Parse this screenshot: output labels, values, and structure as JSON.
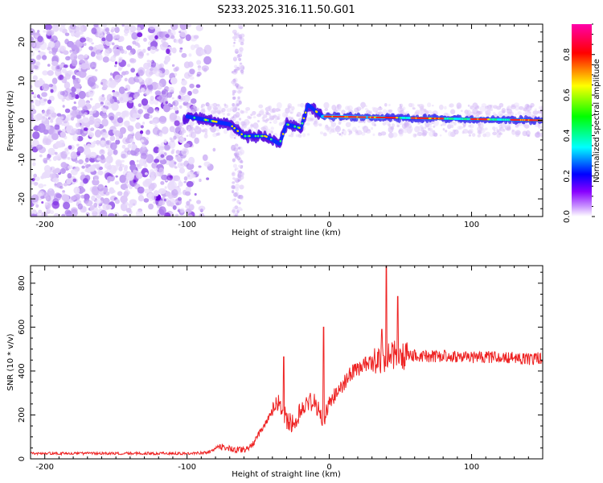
{
  "title": "S233.2025.316.11.50.G01",
  "chart_data": [
    {
      "type": "heatmap",
      "xlabel": "Height of straight line (km)",
      "ylabel": "Frequency (Hz)",
      "xlim": [
        -210,
        150
      ],
      "ylim": [
        -24.5,
        24.5
      ],
      "xticks": [
        -200,
        -100,
        0,
        100
      ],
      "xtick_labels": [
        "-200",
        "-100",
        "0",
        "100"
      ],
      "yticks": [
        -20,
        -10,
        0,
        10,
        20
      ],
      "ytick_labels": [
        "-20",
        "-10",
        "0",
        "10",
        "20"
      ],
      "colorbar": {
        "label": "Normalized spectral amplitude",
        "range": [
          0,
          0.95
        ],
        "ticks": [
          0,
          0.2,
          0.4,
          0.6,
          0.8
        ],
        "tick_labels": [
          "0.0",
          "0.2",
          "0.4",
          "0.6",
          "0.8"
        ],
        "colors": [
          "#ffffff",
          "#8800ff",
          "#0000ff",
          "#00ffff",
          "#00ff00",
          "#ffff00",
          "#ff0000",
          "#ff00aa"
        ]
      },
      "features": {
        "noise_region_x": [
          -210,
          -60
        ],
        "signal_track": [
          {
            "x": -100,
            "y": 1
          },
          {
            "x": -85,
            "y": 0
          },
          {
            "x": -70,
            "y": -1
          },
          {
            "x": -60,
            "y": -4
          },
          {
            "x": -45,
            "y": -4
          },
          {
            "x": -35,
            "y": -6
          },
          {
            "x": -30,
            "y": -1
          },
          {
            "x": -20,
            "y": -2
          },
          {
            "x": -15,
            "y": 4
          },
          {
            "x": -5,
            "y": 1
          },
          {
            "x": 150,
            "y": 0
          }
        ]
      }
    },
    {
      "type": "line",
      "xlabel": "Height of straight line (km)",
      "ylabel": "SNR (10 * v/v)",
      "xlim": [
        -210,
        150
      ],
      "ylim": [
        0,
        880
      ],
      "xticks": [
        -200,
        -100,
        0,
        100
      ],
      "xtick_labels": [
        "-200",
        "-100",
        "0",
        "100"
      ],
      "yticks": [
        0,
        200,
        400,
        600,
        800
      ],
      "ytick_labels": [
        "0",
        "200",
        "400",
        "600",
        "800"
      ],
      "color": "#ee2222",
      "series": [
        {
          "name": "SNR",
          "x": [
            -210,
            -190,
            -170,
            -150,
            -130,
            -110,
            -95,
            -85,
            -80,
            -75,
            -70,
            -65,
            -60,
            -55,
            -50,
            -45,
            -40,
            -35,
            -30,
            -25,
            -20,
            -15,
            -10,
            -5,
            0,
            5,
            10,
            15,
            20,
            25,
            30,
            35,
            40,
            45,
            50,
            55,
            60,
            70,
            80,
            90,
            100,
            110,
            120,
            130,
            140,
            150
          ],
          "y": [
            25,
            25,
            25,
            25,
            25,
            25,
            25,
            30,
            45,
            55,
            50,
            40,
            40,
            55,
            110,
            160,
            220,
            260,
            180,
            160,
            220,
            250,
            270,
            160,
            260,
            300,
            340,
            390,
            410,
            430,
            440,
            450,
            460,
            470,
            460,
            470,
            470,
            465,
            470,
            465,
            460,
            465,
            460,
            460,
            455,
            460
          ]
        }
      ],
      "spikes": [
        {
          "x": -32,
          "y": 465
        },
        {
          "x": -4,
          "y": 600
        },
        {
          "x": 37,
          "y": 590
        },
        {
          "x": 40,
          "y": 880
        },
        {
          "x": 48,
          "y": 740
        }
      ]
    }
  ]
}
